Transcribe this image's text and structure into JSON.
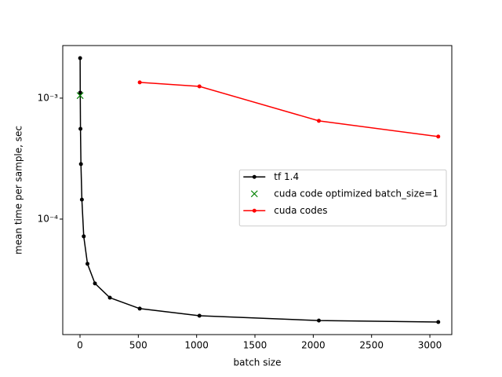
{
  "chart_data": {
    "type": "line",
    "xlabel": "batch size",
    "ylabel": "mean time per sample, sec",
    "log_y": true,
    "grid": false,
    "legend": "center right",
    "xlim": [
      -148,
      3188
    ],
    "xticks": [
      0,
      500,
      1000,
      1500,
      2000,
      2500,
      3000
    ],
    "ylim": [
      1.11e-05,
      0.00272
    ],
    "yticks": [
      {
        "value": 0.001,
        "label": "10⁻³"
      },
      {
        "value": 0.0001,
        "label": "10⁻⁴"
      }
    ],
    "series": [
      {
        "name": "tf 1.4",
        "color": "#000000",
        "marker": "o",
        "linestyle": "solid",
        "x": [
          1,
          2,
          4,
          8,
          16,
          32,
          64,
          128,
          256,
          512,
          1024,
          2048,
          3072
        ],
        "values": [
          0.00214,
          0.00111,
          0.000558,
          0.000285,
          0.000145,
          7.2e-05,
          4.27e-05,
          2.94e-05,
          2.24e-05,
          1.82e-05,
          1.59e-05,
          1.45e-05,
          1.41e-05
        ]
      },
      {
        "name": "cuda code optimized batch_size=1",
        "color": "#008000",
        "marker": "x",
        "linestyle": "none",
        "x": [
          1
        ],
        "values": [
          0.00105
        ]
      },
      {
        "name": "cuda codes",
        "color": "#ff0000",
        "marker": "o",
        "linestyle": "solid",
        "x": [
          512,
          1024,
          2048,
          3072
        ],
        "values": [
          0.00135,
          0.00125,
          0.000649,
          0.000481
        ]
      }
    ]
  }
}
